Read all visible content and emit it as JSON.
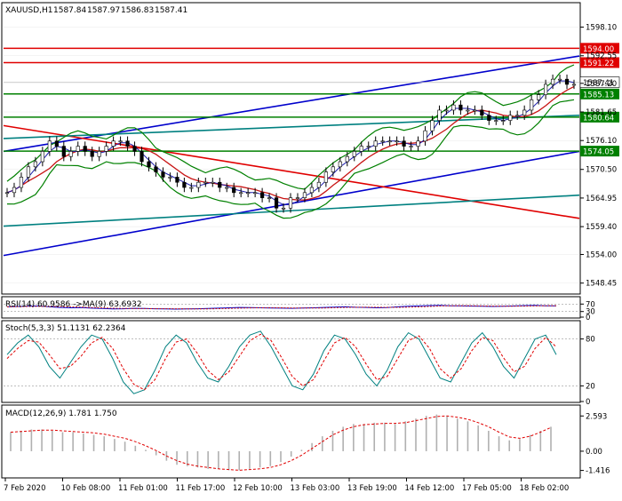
{
  "chart_data": {
    "type": "line",
    "symbol": "XAUUSD,H1",
    "ohlc_readout": [
      "1587.84",
      "1587.97",
      "1586.83",
      "1587.41"
    ],
    "main": {
      "ylim": [
        1546.5,
        1602.5
      ],
      "y_ticks": [
        "1598.10",
        "1592.55",
        "1587.20",
        "1581.65",
        "1576.10",
        "1570.50",
        "1564.95",
        "1559.40",
        "1554.00",
        "1548.45"
      ],
      "price_series": [
        1566,
        1567,
        1569,
        1571,
        1572,
        1574,
        1576,
        1575,
        1573,
        1574,
        1575,
        1574,
        1573,
        1574,
        1575,
        1576,
        1576,
        1575,
        1574,
        1572,
        1571,
        1570,
        1569,
        1569,
        1568,
        1567,
        1567,
        1568,
        1568,
        1568,
        1567,
        1567,
        1566,
        1566,
        1566,
        1566,
        1565,
        1565,
        1563,
        1563,
        1565,
        1565,
        1566,
        1567,
        1568,
        1570,
        1571,
        1572,
        1573,
        1574,
        1575,
        1575,
        1576,
        1576,
        1576,
        1576,
        1575,
        1575,
        1576,
        1578,
        1580,
        1582,
        1582,
        1583,
        1582,
        1582,
        1582,
        1581,
        1580,
        1580,
        1580,
        1581,
        1581,
        1582,
        1584,
        1585,
        1587,
        1588,
        1588,
        1587,
        1587
      ],
      "series": [
        {
          "name": "",
          "color": "#1a1aaa",
          "role": "short-ma"
        },
        {
          "name": "",
          "color": "#c81414",
          "role": "medium-ma"
        },
        {
          "name": "",
          "color": "#008000",
          "role": "bollinger"
        }
      ],
      "levels": [
        {
          "value": "1594.00",
          "color": "#e00000",
          "y": 1594.0
        },
        {
          "value": "1591.22",
          "color": "#e00000",
          "y": 1591.22
        },
        {
          "value": "1587.41",
          "color": "#ffffff",
          "y": 1587.41,
          "text_color": "#000000",
          "current": true
        },
        {
          "value": "1585.13",
          "color": "#008000",
          "y": 1585.13
        },
        {
          "value": "1580.64",
          "color": "#008000",
          "y": 1580.64
        },
        {
          "value": "1574.05",
          "color": "#008000",
          "y": 1574.05
        }
      ],
      "trendlines": [
        {
          "color": "#0000cc",
          "from": [
            0,
            1553.8
          ],
          "to": [
            1.0,
            1574.0
          ]
        },
        {
          "color": "#0000cc",
          "from": [
            0,
            1574.0
          ],
          "to": [
            1.0,
            1592.5
          ]
        },
        {
          "color": "#e00000",
          "from": [
            0,
            1579.0
          ],
          "to": [
            1.0,
            1561.0
          ]
        },
        {
          "color": "#008080",
          "from": [
            0,
            1576.5
          ],
          "to": [
            1.0,
            1581.0
          ]
        },
        {
          "color": "#008080",
          "from": [
            0,
            1559.5
          ],
          "to": [
            1.0,
            1565.5
          ]
        }
      ]
    },
    "rsi": {
      "label": "RSI(14) 60.9586  ->MA(9) 63.6932",
      "ylim": [
        0,
        100
      ],
      "y_ticks": [
        "70",
        "30",
        "0"
      ],
      "levels": [
        70,
        30
      ],
      "values": [
        55,
        57,
        59,
        60,
        55,
        52,
        50,
        51,
        48,
        46,
        44,
        45,
        47,
        46,
        45,
        44,
        43,
        44,
        45,
        46,
        48,
        50,
        52,
        51,
        50,
        49,
        48,
        47,
        49,
        50,
        52,
        54,
        55,
        53,
        52,
        50,
        51,
        55,
        58,
        60,
        62,
        63,
        61,
        60,
        59,
        58,
        57,
        58,
        60,
        62,
        63,
        61,
        60
      ]
    },
    "stoch": {
      "label": "Stoch(5,3,3) 51.1131 62.2364",
      "ylim": [
        0,
        100
      ],
      "y_ticks": [
        "80",
        "20",
        "0"
      ],
      "levels": [
        80,
        20
      ],
      "k_values": [
        60,
        75,
        85,
        70,
        45,
        30,
        50,
        70,
        85,
        80,
        55,
        25,
        10,
        15,
        40,
        70,
        85,
        75,
        50,
        30,
        25,
        45,
        70,
        85,
        90,
        70,
        45,
        20,
        15,
        35,
        65,
        85,
        80,
        60,
        35,
        20,
        40,
        70,
        88,
        80,
        55,
        30,
        25,
        50,
        75,
        88,
        70,
        45,
        30,
        55,
        80,
        85,
        60
      ],
      "d_values": [
        55,
        68,
        78,
        76,
        60,
        42,
        45,
        58,
        75,
        82,
        68,
        42,
        22,
        15,
        28,
        55,
        76,
        80,
        62,
        40,
        28,
        38,
        58,
        78,
        86,
        78,
        56,
        32,
        20,
        28,
        52,
        75,
        82,
        70,
        48,
        28,
        32,
        55,
        78,
        84,
        68,
        42,
        30,
        42,
        65,
        82,
        78,
        56,
        38,
        45,
        68,
        82,
        70
      ]
    },
    "macd": {
      "label": "MACD(12,26,9) 1.781 1.750",
      "ylim": [
        -1.9,
        3.2
      ],
      "y_ticks": [
        "2.593",
        "0.00",
        "-1.416"
      ],
      "values": [
        1.4,
        1.5,
        1.6,
        1.6,
        1.5,
        1.4,
        1.4,
        1.3,
        1.2,
        1.1,
        0.9,
        0.7,
        0.4,
        0.1,
        -0.3,
        -0.7,
        -1.0,
        -1.1,
        -1.2,
        -1.3,
        -1.3,
        -1.4,
        -1.4,
        -1.3,
        -1.2,
        -1.1,
        -0.8,
        -0.4,
        0.1,
        0.6,
        1.1,
        1.5,
        1.8,
        2.0,
        2.0,
        2.1,
        2.1,
        2.0,
        2.2,
        2.4,
        2.6,
        2.7,
        2.6,
        2.4,
        2.2,
        1.9,
        1.5,
        1.1,
        0.8,
        0.9,
        1.2,
        1.5,
        1.8
      ],
      "signal": [
        1.4,
        1.45,
        1.5,
        1.55,
        1.55,
        1.5,
        1.45,
        1.4,
        1.35,
        1.25,
        1.1,
        0.95,
        0.7,
        0.4,
        0.05,
        -0.35,
        -0.7,
        -0.95,
        -1.1,
        -1.2,
        -1.3,
        -1.35,
        -1.4,
        -1.35,
        -1.3,
        -1.2,
        -1.0,
        -0.7,
        -0.3,
        0.2,
        0.7,
        1.2,
        1.55,
        1.8,
        1.95,
        2.0,
        2.05,
        2.05,
        2.1,
        2.25,
        2.4,
        2.55,
        2.6,
        2.5,
        2.35,
        2.1,
        1.8,
        1.4,
        1.05,
        0.95,
        1.1,
        1.4,
        1.75
      ]
    },
    "x_ticks": [
      "7 Feb 2020",
      "10 Feb 08:00",
      "11 Feb 01:00",
      "11 Feb 17:00",
      "12 Feb 10:00",
      "13 Feb 03:00",
      "13 Feb 19:00",
      "14 Feb 12:00",
      "17 Feb 05:00",
      "18 Feb 02:00"
    ]
  }
}
